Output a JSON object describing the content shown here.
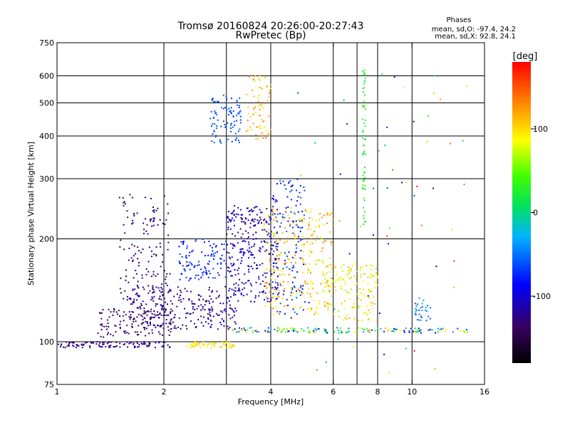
{
  "chart_data": {
    "type": "scatter",
    "title": "Tromsø 20160824 20:26:00-20:27:43",
    "subtitle": "RwPretec (Bp)",
    "xlabel": "Frequency [MHz]",
    "ylabel": "Stationary phase Virtual Height [km]",
    "x_scale": "log",
    "y_scale": "log",
    "xlim": [
      1,
      16
    ],
    "ylim": [
      75,
      750
    ],
    "x_ticks": [
      1,
      2,
      4,
      6,
      8,
      10,
      16
    ],
    "y_ticks": [
      75,
      100,
      200,
      300,
      400,
      500,
      600,
      750
    ],
    "x_tick_labels": [
      "1",
      "2",
      "4",
      "6",
      "8",
      "10",
      "16"
    ],
    "y_tick_labels": [
      "75",
      "100",
      "200",
      "300",
      "400",
      "500",
      "600",
      "750"
    ],
    "x_grid": [
      2,
      3,
      4,
      6,
      7,
      8,
      10
    ],
    "y_grid": [
      100,
      200,
      300,
      400,
      500,
      600
    ],
    "grid": true,
    "stats": {
      "heading": "Phases",
      "line1": "mean, sd,O: -97.4, 24.2",
      "line2": "mean, sd,X:  92.8, 24.1"
    },
    "colorbar": {
      "label": "[deg]",
      "range": [
        -180,
        180
      ],
      "ticks": [
        100,
        0,
        -100
      ],
      "tick_labels": [
        "100",
        "0",
        "-100"
      ]
    },
    "clusters": [
      {
        "name": "low-trace",
        "x": [
          1.0,
          2.1
        ],
        "y": [
          96,
          100
        ],
        "n": 110,
        "phase": [
          -135,
          -115
        ]
      },
      {
        "name": "low-trace-yellow",
        "x": [
          2.3,
          3.2
        ],
        "y": [
          96,
          100
        ],
        "n": 60,
        "phase": [
          80,
          110
        ]
      },
      {
        "name": "e-trace",
        "x": [
          3.1,
          14.5
        ],
        "y": [
          106,
          110
        ],
        "n": 170,
        "phase": [
          -110,
          120
        ]
      },
      {
        "name": "e-sporadic-violet",
        "x": [
          1.3,
          2.1
        ],
        "y": [
          103,
          125
        ],
        "n": 120,
        "phase": [
          -150,
          -125
        ]
      },
      {
        "name": "e-sporadic-mid",
        "x": [
          1.6,
          3.2
        ],
        "y": [
          108,
          145
        ],
        "n": 260,
        "phase": [
          -145,
          -100
        ]
      },
      {
        "name": "f-low-blue",
        "x": [
          1.5,
          2.1
        ],
        "y": [
          130,
          270
        ],
        "n": 140,
        "phase": [
          -150,
          -110
        ]
      },
      {
        "name": "f-blue-2",
        "x": [
          2.2,
          3.0
        ],
        "y": [
          150,
          200
        ],
        "n": 110,
        "phase": [
          -90,
          -60
        ]
      },
      {
        "name": "f-upper-blue",
        "x": [
          2.7,
          3.3
        ],
        "y": [
          380,
          530
        ],
        "n": 90,
        "phase": [
          -70,
          -50
        ]
      },
      {
        "name": "f-mid-blue",
        "x": [
          3.0,
          4.2
        ],
        "y": [
          130,
          250
        ],
        "n": 300,
        "phase": [
          -130,
          -90
        ]
      },
      {
        "name": "f-scatter-blue",
        "x": [
          4.0,
          5.0
        ],
        "y": [
          120,
          300
        ],
        "n": 140,
        "phase": [
          -100,
          -50
        ]
      },
      {
        "name": "f-orange",
        "x": [
          3.8,
          6.0
        ],
        "y": [
          120,
          250
        ],
        "n": 260,
        "phase": [
          70,
          140
        ]
      },
      {
        "name": "f-upper-orange",
        "x": [
          3.4,
          4.0
        ],
        "y": [
          390,
          610
        ],
        "n": 70,
        "phase": [
          90,
          140
        ]
      },
      {
        "name": "f-yellow-scatter",
        "x": [
          5.6,
          8.0
        ],
        "y": [
          115,
          170
        ],
        "n": 150,
        "phase": [
          60,
          120
        ]
      },
      {
        "name": "f-green-column",
        "x": [
          7.25,
          7.4
        ],
        "y": [
          210,
          650
        ],
        "n": 60,
        "phase": [
          20,
          40
        ]
      },
      {
        "name": "f-far-blue",
        "x": [
          10.2,
          11.3
        ],
        "y": [
          115,
          135
        ],
        "n": 30,
        "phase": [
          -60,
          -20
        ]
      },
      {
        "name": "sparse",
        "x": [
          4.5,
          15.0
        ],
        "y": [
          80,
          620
        ],
        "n": 60,
        "phase": [
          -180,
          180
        ]
      }
    ]
  }
}
